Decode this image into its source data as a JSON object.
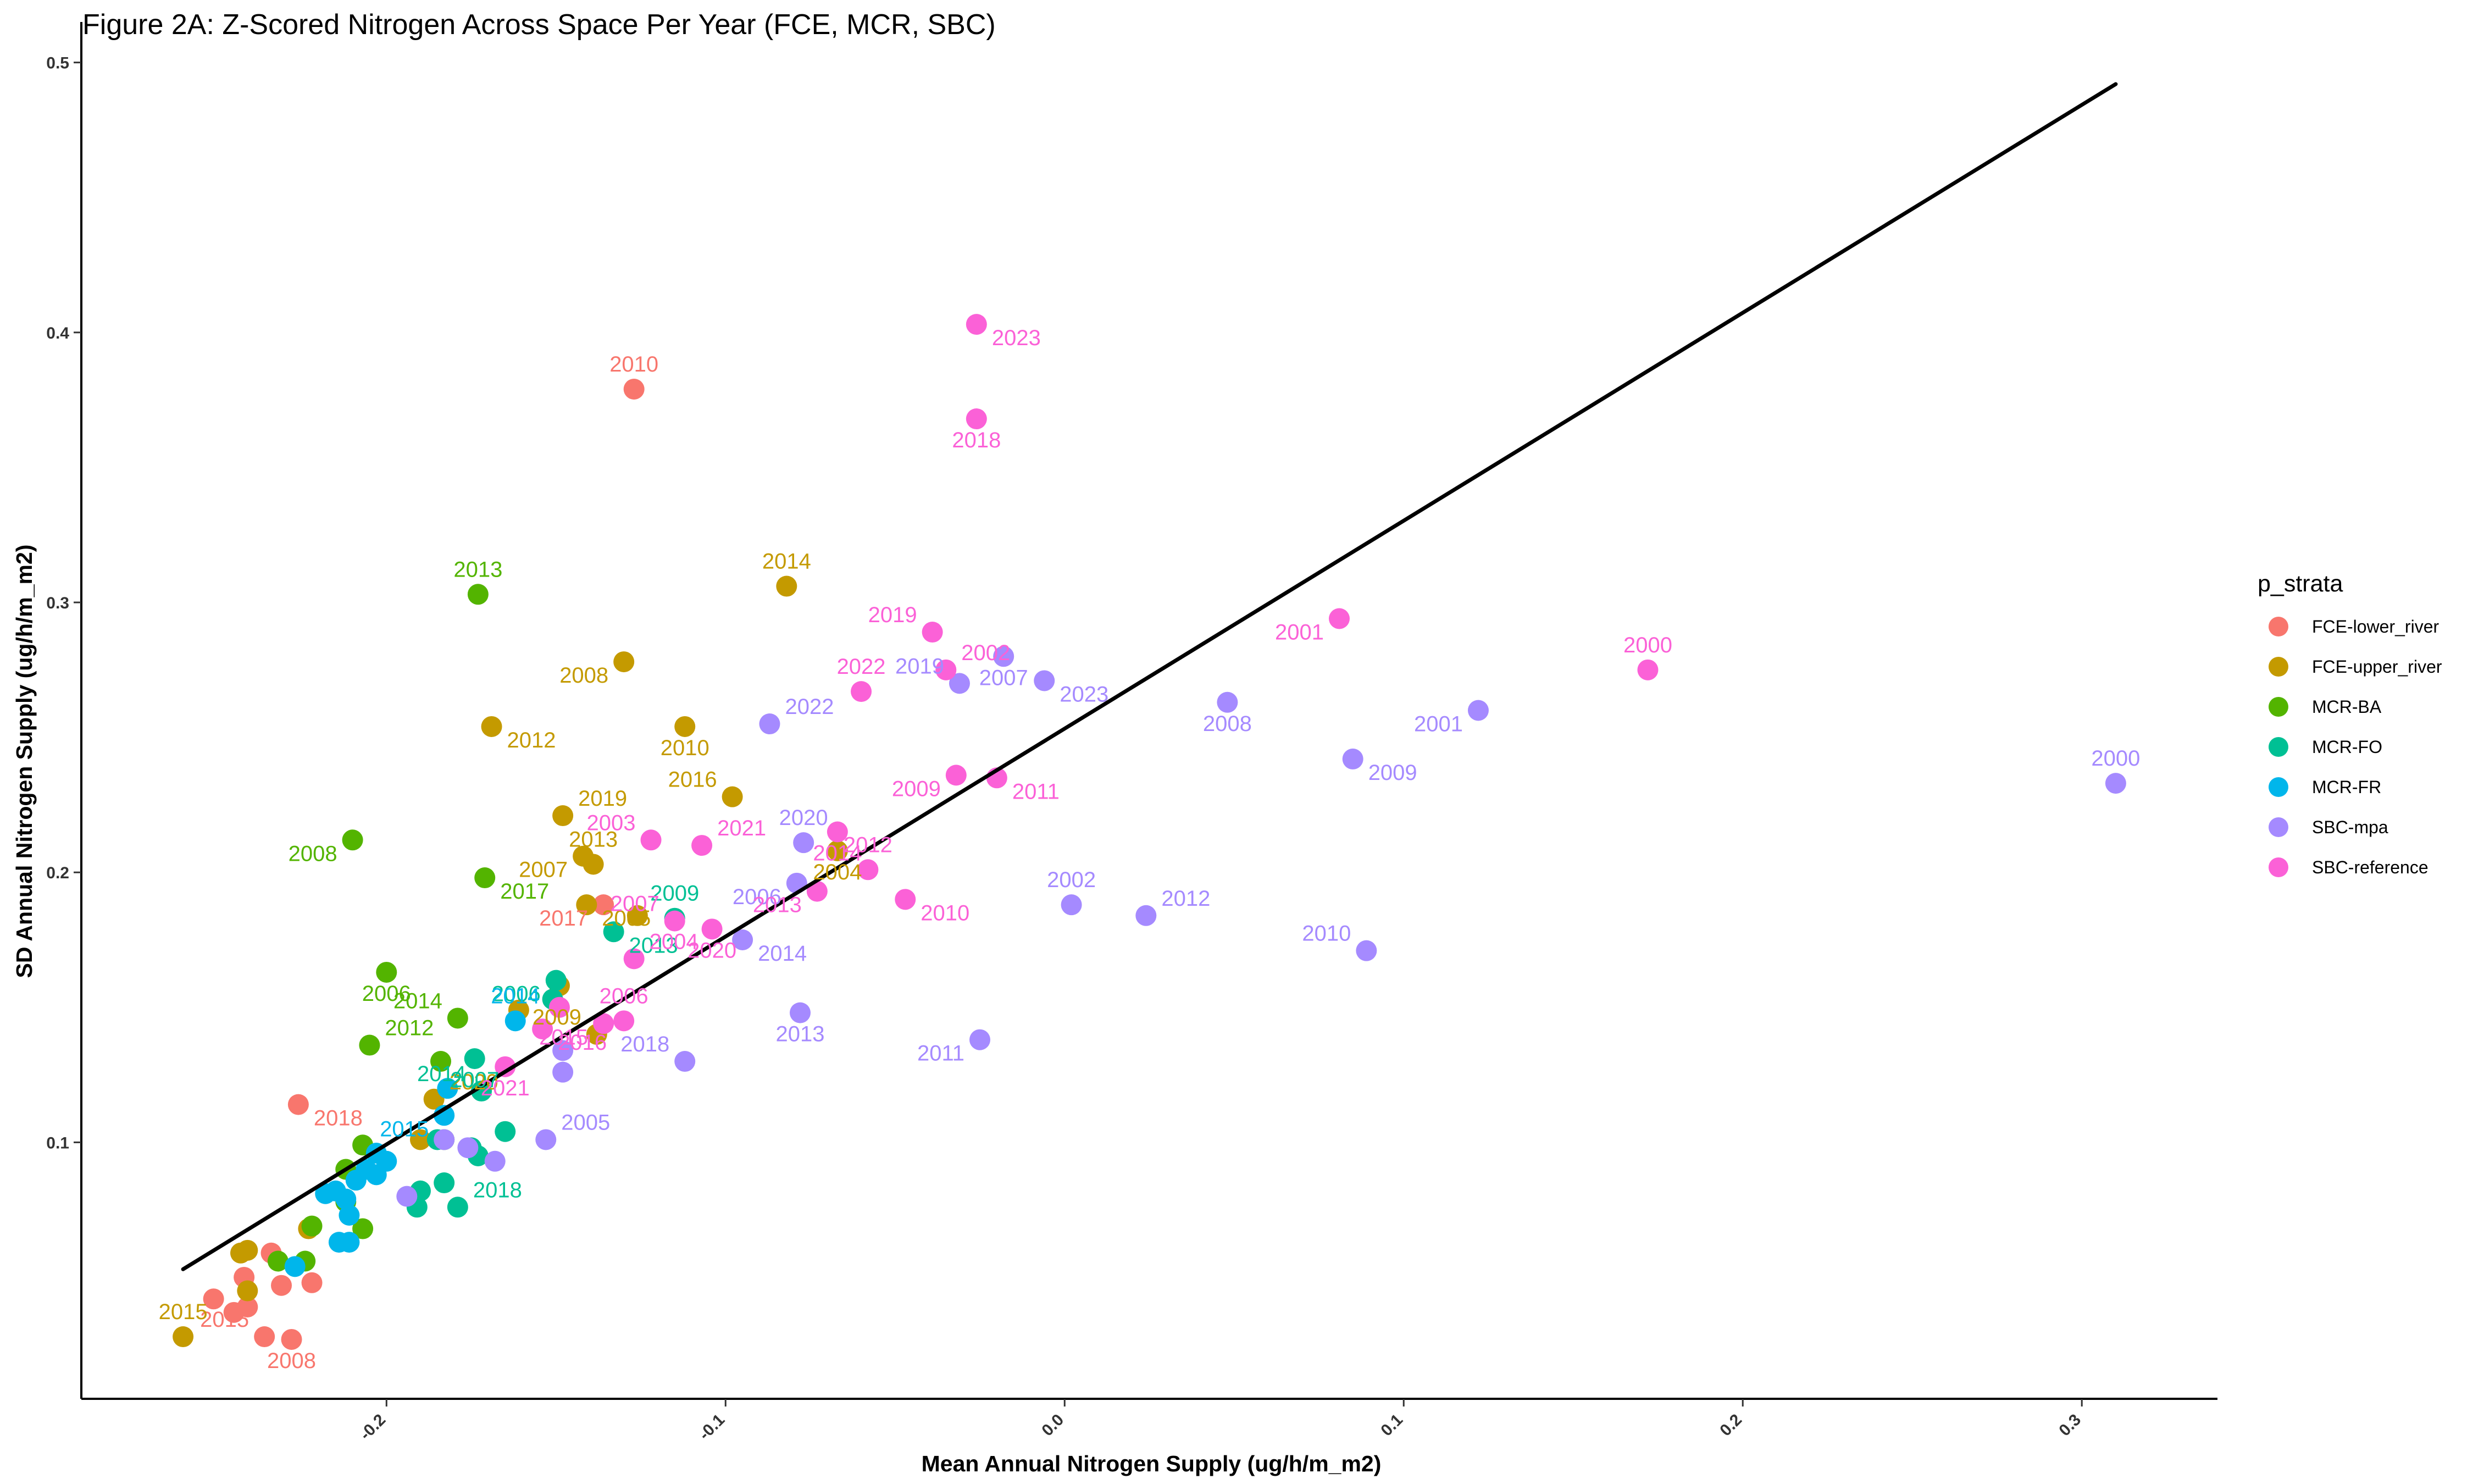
{
  "chart_data": {
    "type": "scatter",
    "title": "Figure 2A: Z-Scored Nitrogen Across Space Per Year (FCE, MCR, SBC)",
    "xlabel": "Mean Annual Nitrogen Supply (ug/h/m_m2)",
    "ylabel": "SD Annual Nitrogen Supply (ug/h/m_m2)",
    "xlim": [
      -0.29,
      0.34
    ],
    "ylim": [
      0.005,
      0.515
    ],
    "x_ticks": [
      -0.2,
      -0.1,
      0.0,
      0.1,
      0.2,
      0.3
    ],
    "x_tick_labels": [
      "-0.2",
      "-0.1",
      "0.0",
      "0.1",
      "0.2",
      "0.3"
    ],
    "y_ticks": [
      0.1,
      0.2,
      0.3,
      0.4,
      0.5
    ],
    "y_tick_labels": [
      "0.1",
      "0.2",
      "0.3",
      "0.4",
      "0.5"
    ],
    "grid": false,
    "legend_position": "right",
    "legend_title": "p_strata",
    "trend_line": {
      "x": [
        -0.26,
        0.31
      ],
      "y": [
        0.053,
        0.492
      ],
      "color": "#000000"
    },
    "series": [
      {
        "name": "FCE-lower_river",
        "color": "#F8766D",
        "points": [
          {
            "x": -0.127,
            "y": 0.379,
            "label": "2010"
          },
          {
            "x": -0.136,
            "y": 0.188,
            "label": "2017"
          },
          {
            "x": -0.226,
            "y": 0.114,
            "label": "2018"
          },
          {
            "x": -0.228,
            "y": 0.027,
            "label": "2008"
          },
          {
            "x": -0.236,
            "y": 0.028,
            "label": "2015"
          },
          {
            "x": -0.251,
            "y": 0.042
          },
          {
            "x": -0.245,
            "y": 0.037
          },
          {
            "x": -0.241,
            "y": 0.039
          },
          {
            "x": -0.242,
            "y": 0.05
          },
          {
            "x": -0.234,
            "y": 0.059
          },
          {
            "x": -0.231,
            "y": 0.047
          },
          {
            "x": -0.222,
            "y": 0.048
          }
        ]
      },
      {
        "name": "FCE-upper_river",
        "color": "#C49A00",
        "points": [
          {
            "x": -0.082,
            "y": 0.306,
            "label": "2014"
          },
          {
            "x": -0.13,
            "y": 0.278,
            "label": "2008"
          },
          {
            "x": -0.169,
            "y": 0.254,
            "label": "2012"
          },
          {
            "x": -0.112,
            "y": 0.254,
            "label": "2010"
          },
          {
            "x": -0.098,
            "y": 0.228,
            "label": "2016"
          },
          {
            "x": -0.148,
            "y": 0.221,
            "label": "2019"
          },
          {
            "x": -0.139,
            "y": 0.203,
            "label": "2013"
          },
          {
            "x": -0.142,
            "y": 0.206,
            "label": "2007"
          },
          {
            "x": -0.141,
            "y": 0.188,
            "label": "2005"
          },
          {
            "x": -0.067,
            "y": 0.208,
            "label": "2004"
          },
          {
            "x": -0.138,
            "y": 0.14,
            "label": "2009"
          },
          {
            "x": -0.186,
            "y": 0.116,
            "label": "2020"
          },
          {
            "x": -0.26,
            "y": 0.028,
            "label": "2015"
          },
          {
            "x": -0.126,
            "y": 0.184
          },
          {
            "x": -0.161,
            "y": 0.149
          },
          {
            "x": -0.149,
            "y": 0.158
          },
          {
            "x": -0.243,
            "y": 0.059
          },
          {
            "x": -0.241,
            "y": 0.06
          },
          {
            "x": -0.241,
            "y": 0.045
          },
          {
            "x": -0.223,
            "y": 0.068
          },
          {
            "x": -0.19,
            "y": 0.101
          }
        ]
      },
      {
        "name": "MCR-BA",
        "color": "#53B400",
        "points": [
          {
            "x": -0.173,
            "y": 0.303,
            "label": "2013"
          },
          {
            "x": -0.21,
            "y": 0.212,
            "label": "2008"
          },
          {
            "x": -0.171,
            "y": 0.198,
            "label": "2017"
          },
          {
            "x": -0.2,
            "y": 0.163,
            "label": "2006"
          },
          {
            "x": -0.179,
            "y": 0.146,
            "label": "2014"
          },
          {
            "x": -0.205,
            "y": 0.136,
            "label": "2012"
          },
          {
            "x": -0.184,
            "y": 0.13
          },
          {
            "x": -0.207,
            "y": 0.099
          },
          {
            "x": -0.212,
            "y": 0.09
          },
          {
            "x": -0.222,
            "y": 0.069
          },
          {
            "x": -0.232,
            "y": 0.056
          },
          {
            "x": -0.224,
            "y": 0.056
          },
          {
            "x": -0.207,
            "y": 0.068
          },
          {
            "x": -0.212,
            "y": 0.078
          },
          {
            "x": -0.183,
            "y": 0.101
          }
        ]
      },
      {
        "name": "MCR-FO",
        "color": "#00C094",
        "points": [
          {
            "x": -0.115,
            "y": 0.183,
            "label": "2009"
          },
          {
            "x": -0.15,
            "y": 0.16,
            "label": "2006"
          },
          {
            "x": -0.133,
            "y": 0.178,
            "label": "2013"
          },
          {
            "x": -0.174,
            "y": 0.131,
            "label": "2007"
          },
          {
            "x": -0.172,
            "y": 0.119,
            "label": "2014"
          },
          {
            "x": -0.179,
            "y": 0.076,
            "label": "2018"
          },
          {
            "x": -0.151,
            "y": 0.153
          },
          {
            "x": -0.165,
            "y": 0.104
          },
          {
            "x": -0.19,
            "y": 0.082
          },
          {
            "x": -0.191,
            "y": 0.076
          },
          {
            "x": -0.183,
            "y": 0.085
          },
          {
            "x": -0.175,
            "y": 0.098
          },
          {
            "x": -0.173,
            "y": 0.095
          },
          {
            "x": -0.185,
            "y": 0.101
          }
        ]
      },
      {
        "name": "MCR-FR",
        "color": "#00B6EB",
        "points": [
          {
            "x": -0.162,
            "y": 0.145,
            "label": "2014"
          },
          {
            "x": -0.183,
            "y": 0.11,
            "label": "2015"
          },
          {
            "x": -0.182,
            "y": 0.12
          },
          {
            "x": -0.2,
            "y": 0.093
          },
          {
            "x": -0.203,
            "y": 0.088
          },
          {
            "x": -0.206,
            "y": 0.09
          },
          {
            "x": -0.209,
            "y": 0.086
          },
          {
            "x": -0.212,
            "y": 0.079
          },
          {
            "x": -0.215,
            "y": 0.082
          },
          {
            "x": -0.211,
            "y": 0.073
          },
          {
            "x": -0.214,
            "y": 0.063
          },
          {
            "x": -0.211,
            "y": 0.063
          },
          {
            "x": -0.227,
            "y": 0.054
          },
          {
            "x": -0.203,
            "y": 0.096
          },
          {
            "x": -0.218,
            "y": 0.081
          }
        ]
      },
      {
        "name": "SBC-mpa",
        "color": "#A58AFF",
        "points": [
          {
            "x": 0.31,
            "y": 0.233,
            "label": "2000"
          },
          {
            "x": 0.122,
            "y": 0.26,
            "label": "2001"
          },
          {
            "x": 0.085,
            "y": 0.242,
            "label": "2009"
          },
          {
            "x": 0.048,
            "y": 0.263,
            "label": "2008"
          },
          {
            "x": 0.089,
            "y": 0.171,
            "label": "2010"
          },
          {
            "x": 0.024,
            "y": 0.184,
            "label": "2012"
          },
          {
            "x": 0.002,
            "y": 0.188,
            "label": "2002"
          },
          {
            "x": -0.025,
            "y": 0.138,
            "label": "2011"
          },
          {
            "x": -0.006,
            "y": 0.271,
            "label": "2023"
          },
          {
            "x": -0.018,
            "y": 0.28,
            "label": "2007"
          },
          {
            "x": -0.031,
            "y": 0.27,
            "label": "2019"
          },
          {
            "x": -0.087,
            "y": 0.255,
            "label": "2022"
          },
          {
            "x": -0.077,
            "y": 0.211,
            "label": "2020"
          },
          {
            "x": -0.079,
            "y": 0.196,
            "label": "2006"
          },
          {
            "x": -0.095,
            "y": 0.175,
            "label": "2014"
          },
          {
            "x": -0.078,
            "y": 0.148,
            "label": "2013"
          },
          {
            "x": -0.112,
            "y": 0.13,
            "label": "2018"
          },
          {
            "x": -0.153,
            "y": 0.101,
            "label": "2005"
          },
          {
            "x": -0.148,
            "y": 0.134
          },
          {
            "x": -0.148,
            "y": 0.126
          },
          {
            "x": -0.168,
            "y": 0.093
          },
          {
            "x": -0.176,
            "y": 0.098
          },
          {
            "x": -0.183,
            "y": 0.101
          },
          {
            "x": -0.194,
            "y": 0.08
          }
        ]
      },
      {
        "name": "SBC-reference",
        "color": "#FB61D7",
        "points": [
          {
            "x": 0.172,
            "y": 0.275,
            "label": "2000"
          },
          {
            "x": 0.081,
            "y": 0.294,
            "label": "2001"
          },
          {
            "x": -0.026,
            "y": 0.403,
            "label": "2023"
          },
          {
            "x": -0.026,
            "y": 0.368,
            "label": "2018"
          },
          {
            "x": -0.039,
            "y": 0.289,
            "label": "2019"
          },
          {
            "x": -0.035,
            "y": 0.275,
            "label": "2002"
          },
          {
            "x": -0.06,
            "y": 0.267,
            "label": "2022"
          },
          {
            "x": -0.032,
            "y": 0.236,
            "label": "2009"
          },
          {
            "x": -0.02,
            "y": 0.235,
            "label": "2011"
          },
          {
            "x": -0.067,
            "y": 0.215,
            "label": "2014"
          },
          {
            "x": -0.122,
            "y": 0.212,
            "label": "2003"
          },
          {
            "x": -0.107,
            "y": 0.21,
            "label": "2021"
          },
          {
            "x": -0.058,
            "y": 0.201,
            "label": "2012"
          },
          {
            "x": -0.073,
            "y": 0.193,
            "label": "2013"
          },
          {
            "x": -0.047,
            "y": 0.19,
            "label": "2010"
          },
          {
            "x": -0.104,
            "y": 0.179,
            "label": "2020"
          },
          {
            "x": -0.115,
            "y": 0.182,
            "label": "2007"
          },
          {
            "x": -0.127,
            "y": 0.168,
            "label": "2004"
          },
          {
            "x": -0.13,
            "y": 0.145,
            "label": "2006"
          },
          {
            "x": -0.136,
            "y": 0.144,
            "label": "2015"
          },
          {
            "x": -0.154,
            "y": 0.142,
            "label": "2016"
          },
          {
            "x": -0.165,
            "y": 0.128,
            "label": "2021"
          },
          {
            "x": -0.149,
            "y": 0.15
          }
        ]
      }
    ]
  }
}
